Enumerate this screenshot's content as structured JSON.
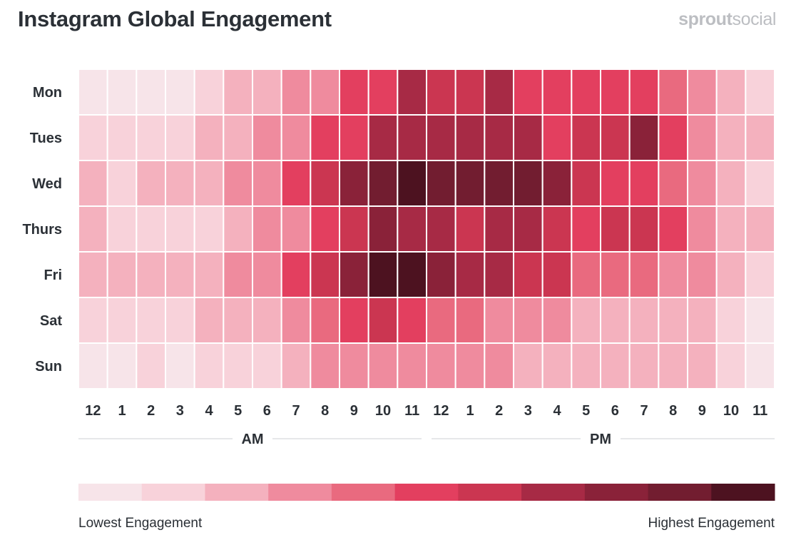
{
  "header": {
    "title": "Instagram Global Engagement",
    "brand_bold": "sprout",
    "brand_light": "social"
  },
  "colors": {
    "scale": [
      "#f7e4e9",
      "#f8d2da",
      "#f4b1be",
      "#ef8b9e",
      "#e96a7f",
      "#e33f5f",
      "#cb3651",
      "#a72a45",
      "#8a2239",
      "#721d30",
      "#4d1220"
    ],
    "grid_line": "#ffffff",
    "divider": "#e6e7e9"
  },
  "chart_data": {
    "type": "heatmap",
    "title": "Instagram Global Engagement",
    "rows": [
      "Mon",
      "Tues",
      "Wed",
      "Thurs",
      "Fri",
      "Sat",
      "Sun"
    ],
    "columns": [
      "12",
      "1",
      "2",
      "3",
      "4",
      "5",
      "6",
      "7",
      "8",
      "9",
      "10",
      "11",
      "12",
      "1",
      "2",
      "3",
      "4",
      "5",
      "6",
      "7",
      "8",
      "9",
      "10",
      "11"
    ],
    "column_groups": [
      {
        "label": "AM",
        "start": 0,
        "end": 11
      },
      {
        "label": "PM",
        "start": 12,
        "end": 23
      }
    ],
    "scale_min": 0,
    "scale_max": 10,
    "values": [
      [
        0,
        0,
        0,
        0,
        1,
        2,
        2,
        3,
        3,
        5,
        5,
        7,
        6,
        6,
        7,
        5,
        5,
        5,
        5,
        5,
        4,
        3,
        2,
        1
      ],
      [
        1,
        1,
        1,
        1,
        2,
        2,
        3,
        3,
        5,
        5,
        7,
        7,
        7,
        7,
        7,
        7,
        5,
        6,
        6,
        8,
        5,
        3,
        2,
        2
      ],
      [
        2,
        1,
        2,
        2,
        2,
        3,
        3,
        5,
        6,
        8,
        9,
        10,
        9,
        9,
        9,
        9,
        8,
        6,
        5,
        5,
        4,
        3,
        2,
        1
      ],
      [
        2,
        1,
        1,
        1,
        1,
        2,
        3,
        3,
        5,
        6,
        8,
        7,
        7,
        6,
        7,
        7,
        6,
        5,
        6,
        6,
        5,
        3,
        2,
        2
      ],
      [
        2,
        2,
        2,
        2,
        2,
        3,
        3,
        5,
        6,
        8,
        10,
        10,
        8,
        7,
        7,
        6,
        6,
        4,
        4,
        4,
        3,
        3,
        2,
        1
      ],
      [
        1,
        1,
        1,
        1,
        2,
        2,
        2,
        3,
        4,
        5,
        6,
        5,
        4,
        4,
        3,
        3,
        3,
        2,
        2,
        2,
        2,
        2,
        1,
        0
      ],
      [
        0,
        0,
        1,
        0,
        1,
        1,
        1,
        2,
        3,
        3,
        3,
        3,
        3,
        3,
        3,
        2,
        2,
        2,
        2,
        2,
        2,
        2,
        1,
        0
      ]
    ],
    "legend": {
      "low_label": "Lowest Engagement",
      "high_label": "Highest Engagement",
      "steps": 11
    }
  }
}
